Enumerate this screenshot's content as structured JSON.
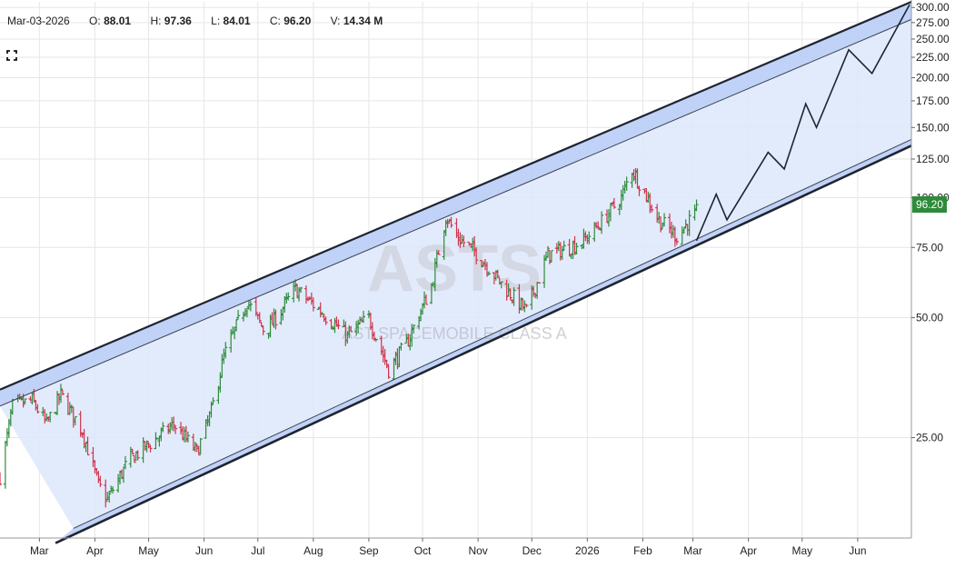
{
  "header": {
    "date": "Mar-03-2026",
    "open_label": "O:",
    "open": "88.01",
    "high_label": "H:",
    "high": "97.36",
    "low_label": "L:",
    "low": "84.01",
    "close_label": "C:",
    "close": "96.20",
    "volume_label": "V:",
    "volume": "14.34 M"
  },
  "toolbar": {
    "expand_icon": "expand-icon"
  },
  "colors": {
    "up": "#2e8b3a",
    "down": "#d0334a",
    "channel_fill": "#dde7fb",
    "band_fill": "#b9cdf6",
    "line": "#1f2430",
    "grid": "#e6e6e6",
    "price_badge": "#2e8b3a"
  },
  "chart_data": {
    "type": "ohlc",
    "watermark_symbol": "ASTS",
    "watermark_name": "AST SPACEMOBILE CLASS A",
    "current_price": 96.2,
    "current_price_label": "96.20",
    "y_scale": "log",
    "ylim": [
      14,
      310
    ],
    "y_ticks": [
      {
        "value": 300,
        "label": "300.00"
      },
      {
        "value": 275,
        "label": "275.00"
      },
      {
        "value": 250,
        "label": "250.00"
      },
      {
        "value": 225,
        "label": "225.00"
      },
      {
        "value": 200,
        "label": "200.00"
      },
      {
        "value": 175,
        "label": "175.00"
      },
      {
        "value": 150,
        "label": "150.00"
      },
      {
        "value": 125,
        "label": "125.00"
      },
      {
        "value": 100,
        "label": "100.00"
      },
      {
        "value": 75,
        "label": "75.00"
      },
      {
        "value": 50,
        "label": "50.00"
      },
      {
        "value": 25,
        "label": "25.00"
      }
    ],
    "x_labels": [
      "Mar",
      "Apr",
      "May",
      "Jun",
      "Jul",
      "Aug",
      "Sep",
      "Oct",
      "Nov",
      "Dec",
      "2026",
      "Feb",
      "Mar",
      "Apr",
      "May",
      "Jun"
    ],
    "x_dates": [
      "2025-03-01",
      "2025-04-01",
      "2025-05-01",
      "2025-06-01",
      "2025-07-01",
      "2025-08-01",
      "2025-09-01",
      "2025-10-01",
      "2025-11-01",
      "2025-12-01",
      "2026-01-01",
      "2026-02-01",
      "2026-03-01",
      "2026-04-01",
      "2026-05-01",
      "2026-06-01"
    ],
    "x_range": [
      "2025-02-07",
      "2026-07-01"
    ],
    "channel": {
      "upper_outer": [
        [
          "2025-02-07",
          33
        ],
        [
          "2026-07-01",
          310
        ]
      ],
      "upper_inner": [
        [
          "2025-02-07",
          30
        ],
        [
          "2026-07-01",
          280
        ]
      ],
      "lower_inner": [
        [
          "2025-03-20",
          14.8
        ],
        [
          "2026-07-01",
          140
        ]
      ],
      "lower_outer": [
        [
          "2025-03-10",
          13.6
        ],
        [
          "2026-07-01",
          135
        ]
      ]
    },
    "projection": [
      [
        "2026-03-03",
        78
      ],
      [
        "2026-03-14",
        102
      ],
      [
        "2026-03-20",
        88
      ],
      [
        "2026-04-12",
        130
      ],
      [
        "2026-04-21",
        118
      ],
      [
        "2026-05-03",
        172
      ],
      [
        "2026-05-09",
        150
      ],
      [
        "2026-05-27",
        235
      ],
      [
        "2026-06-09",
        205
      ],
      [
        "2026-06-30",
        305
      ]
    ],
    "price_anchors": [
      [
        "2025-02-07",
        20
      ],
      [
        "2025-02-14",
        30
      ],
      [
        "2025-02-25",
        31
      ],
      [
        "2025-03-05",
        27
      ],
      [
        "2025-03-13",
        32
      ],
      [
        "2025-03-25",
        26
      ],
      [
        "2025-04-03",
        19
      ],
      [
        "2025-04-08",
        17.5
      ],
      [
        "2025-04-20",
        22
      ],
      [
        "2025-05-01",
        24
      ],
      [
        "2025-05-15",
        27
      ],
      [
        "2025-05-28",
        23
      ],
      [
        "2025-06-05",
        29
      ],
      [
        "2025-06-12",
        40
      ],
      [
        "2025-06-25",
        55
      ],
      [
        "2025-07-05",
        46
      ],
      [
        "2025-07-15",
        53
      ],
      [
        "2025-07-22",
        59
      ],
      [
        "2025-08-05",
        52
      ],
      [
        "2025-08-20",
        45
      ],
      [
        "2025-09-01",
        50
      ],
      [
        "2025-09-12",
        37
      ],
      [
        "2025-09-22",
        43
      ],
      [
        "2025-10-06",
        60
      ],
      [
        "2025-10-14",
        90
      ],
      [
        "2025-10-20",
        80
      ],
      [
        "2025-11-01",
        72
      ],
      [
        "2025-11-15",
        60
      ],
      [
        "2025-11-28",
        52
      ],
      [
        "2025-12-10",
        72
      ],
      [
        "2025-12-22",
        75
      ],
      [
        "2025-12-30",
        78
      ],
      [
        "2026-01-08",
        86
      ],
      [
        "2026-01-20",
        100
      ],
      [
        "2026-01-26",
        118
      ],
      [
        "2026-02-01",
        105
      ],
      [
        "2026-02-10",
        88
      ],
      [
        "2026-02-20",
        80
      ],
      [
        "2026-03-03",
        92
      ]
    ]
  }
}
